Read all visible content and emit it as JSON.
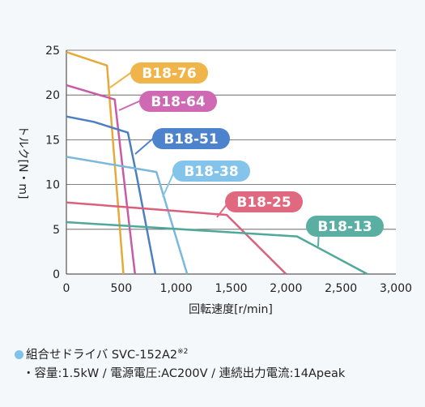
{
  "chart_data": {
    "type": "line",
    "xlabel": "回転速度[r/min]",
    "ylabel": "トルク[N・m]",
    "xlim": [
      0,
      3000
    ],
    "ylim": [
      0,
      25
    ],
    "xticks": [
      "0",
      "500",
      "1,000",
      "1,500",
      "2,000",
      "2,500",
      "3,000"
    ],
    "yticks": [
      "0",
      "5",
      "10",
      "15",
      "20",
      "25"
    ],
    "grid": "horizontal",
    "series": [
      {
        "name": "B18-76",
        "color": "#e6a93a",
        "label_color": "#f0b54a",
        "x": [
          0,
          370,
          510,
          520
        ],
        "y": [
          24.8,
          23.3,
          1.5,
          0
        ]
      },
      {
        "name": "B18-64",
        "color": "#c95aa7",
        "label_color": "#cf69b3",
        "x": [
          0,
          440,
          610,
          625
        ],
        "y": [
          21.1,
          19.5,
          1.5,
          0
        ]
      },
      {
        "name": "B18-51",
        "color": "#4b7fc2",
        "label_color": "#4d83cc",
        "x": [
          0,
          250,
          560,
          640,
          810
        ],
        "y": [
          17.6,
          17.0,
          15.8,
          11.0,
          0
        ]
      },
      {
        "name": "B18-38",
        "color": "#7ab8de",
        "label_color": "#84c4ea",
        "x": [
          0,
          820,
          1100
        ],
        "y": [
          13.1,
          11.4,
          0
        ]
      },
      {
        "name": "B18-25",
        "color": "#d9617d",
        "label_color": "#e0687f",
        "x": [
          0,
          1460,
          2000
        ],
        "y": [
          8.0,
          6.6,
          0
        ]
      },
      {
        "name": "B18-13",
        "color": "#4fa99a",
        "label_color": "#5aafa2",
        "x": [
          0,
          2100,
          2740
        ],
        "y": [
          5.8,
          4.2,
          0
        ]
      }
    ]
  },
  "notes": {
    "driver": "組合せドライバ SVC-152A2",
    "driver_sup": "※2",
    "spec": "・容量:1.5kW / 電源電圧:AC200V / 連続出力電流:14Apeak"
  }
}
